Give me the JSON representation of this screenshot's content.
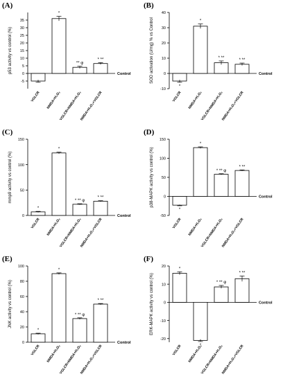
{
  "chart_data": [
    {
      "type": "bar",
      "panel_label": "(A)",
      "ylabel": "p53 activity vs control (%)",
      "baseline_label": "Control",
      "categories": [
        "VGLCR",
        "NMDA+H₂O₂",
        "VGLCR+NMDA+H₂O₂",
        "NMDA+H₂O₂+VGLCR"
      ],
      "values": [
        -5,
        36,
        4,
        6.5
      ],
      "errors": [
        0.8,
        1.5,
        0.7,
        0.6
      ],
      "annotations": [
        "",
        "*",
        "** φ",
        "* **"
      ],
      "ylim": [
        -10,
        40
      ],
      "yticks": [
        -5,
        0,
        5,
        10,
        15,
        20,
        25,
        30,
        35
      ],
      "ytick_labels": [
        "-5",
        "0",
        "5",
        "10",
        "15",
        "20",
        "25",
        "30",
        "35"
      ]
    },
    {
      "type": "bar",
      "panel_label": "(B)",
      "ylabel": "SOD activation (U/mg) % vs Control",
      "baseline_label": "Control",
      "categories": [
        "VGLCR",
        "NMDA+H₂O₂",
        "VGLCR+NMDA+H₂O₂",
        "NMDA+H₂O₂+VGLCR"
      ],
      "values": [
        -5,
        31,
        7,
        6
      ],
      "errors": [
        0.8,
        1.5,
        1.2,
        0.8
      ],
      "annotations": [
        "*",
        "*",
        "* **",
        "* **"
      ],
      "ylim": [
        -10,
        40
      ],
      "yticks": [
        -10,
        0,
        10,
        20,
        30,
        40
      ],
      "ytick_labels": [
        "-10",
        "0",
        "10",
        "20",
        "30",
        "40"
      ]
    },
    {
      "type": "bar",
      "panel_label": "(C)",
      "ylabel": "mmp9 activity vs control (%)",
      "baseline_label": "Control",
      "categories": [
        "VGLCR",
        "NMDA+H₂O₂",
        "VGLCR+NMDA+H₂O₂",
        "NMDA+H₂O₂+VGLCR"
      ],
      "values": [
        7,
        123,
        22,
        28
      ],
      "errors": [
        1,
        1.5,
        1,
        1
      ],
      "annotations": [
        "*",
        "*",
        "* ** φ",
        "* **"
      ],
      "ylim": [
        0,
        150
      ],
      "yticks": [
        0,
        50,
        100,
        150
      ],
      "ytick_labels": [
        "0",
        "50",
        "100",
        "150"
      ]
    },
    {
      "type": "bar",
      "panel_label": "(D)",
      "ylabel": "p38-MAPK activity vs control (%)",
      "baseline_label": "Control",
      "categories": [
        "VGLCR",
        "NMDA+H₂O₂",
        "VGLCR+NMDA+H₂O₂",
        "NMDA+H₂O₂+VGLCR"
      ],
      "values": [
        -23,
        128,
        58,
        68
      ],
      "errors": [
        1.5,
        2,
        1.5,
        1.5
      ],
      "annotations": [
        "*",
        "*",
        "* ** φ",
        "* **"
      ],
      "ylim": [
        -50,
        150
      ],
      "yticks": [
        -50,
        0,
        50,
        100,
        150
      ],
      "ytick_labels": [
        "-50",
        "0",
        "50",
        "100",
        "150"
      ]
    },
    {
      "type": "bar",
      "panel_label": "(E)",
      "ylabel": "JNK activity vs control (%)",
      "baseline_label": "Control",
      "categories": [
        "VGLCR",
        "NMDA+H₂O₂",
        "VGLCR+NMDA+H₂O₂",
        "NMDA+H₂O₂+VGLCR"
      ],
      "values": [
        11,
        90,
        31,
        50
      ],
      "errors": [
        0.8,
        1,
        1,
        0.8
      ],
      "annotations": [
        "*",
        "*",
        "* ** φ",
        "* **"
      ],
      "ylim": [
        0,
        100
      ],
      "yticks": [
        0,
        20,
        40,
        60,
        80,
        100
      ],
      "ytick_labels": [
        "0",
        "20",
        "40",
        "60",
        "80",
        "100"
      ]
    },
    {
      "type": "bar",
      "panel_label": "(F)",
      "ylabel": "ERK-MAPK activity vs control (%)",
      "baseline_label": "Control",
      "categories": [
        "VGLCR",
        "NMDA+H₂O₂",
        "VGLCR+NMDA+H₂O₂",
        "NMDA+H₂O₂+VGLCR"
      ],
      "values": [
        16,
        -21,
        8.5,
        13
      ],
      "errors": [
        0.8,
        0.6,
        0.8,
        1.5
      ],
      "annotations": [
        "*",
        "*",
        "* ** φ",
        "* **"
      ],
      "ylim": [
        -22,
        20
      ],
      "yticks": [
        -20,
        -10,
        0,
        10,
        20
      ],
      "ytick_labels": [
        "-20",
        "-10",
        "0",
        "10",
        "20"
      ]
    }
  ]
}
